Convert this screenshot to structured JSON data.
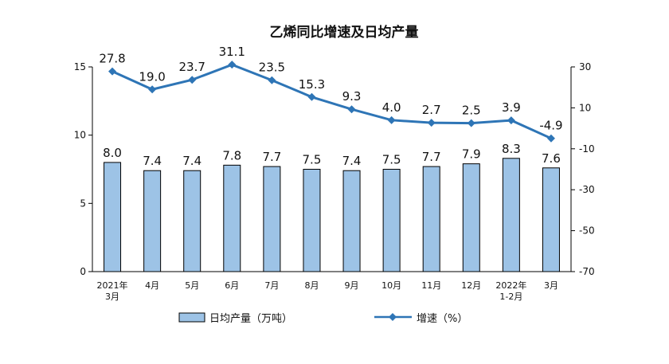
{
  "chart_data": {
    "type": "bar",
    "title": "乙烯同比增速及日均产量",
    "categories": [
      [
        "2021年",
        "3月"
      ],
      [
        "4月"
      ],
      [
        "5月"
      ],
      [
        "6月"
      ],
      [
        "7月"
      ],
      [
        "8月"
      ],
      [
        "9月"
      ],
      [
        "10月"
      ],
      [
        "11月"
      ],
      [
        "12月"
      ],
      [
        "2022年",
        "1-2月"
      ],
      [
        "3月"
      ]
    ],
    "series": [
      {
        "name": "日均产量（万吨）",
        "type": "bar",
        "axis": "left",
        "color": "#9DC3E6",
        "stroke": "#000000",
        "values": [
          8.0,
          7.4,
          7.4,
          7.8,
          7.7,
          7.5,
          7.4,
          7.5,
          7.7,
          7.9,
          8.3,
          7.6
        ],
        "labels": [
          "8.0",
          "7.4",
          "7.4",
          "7.8",
          "7.7",
          "7.5",
          "7.4",
          "7.5",
          "7.7",
          "7.9",
          "8.3",
          "7.6"
        ]
      },
      {
        "name": "增速（%）",
        "type": "line",
        "axis": "right",
        "color": "#2E75B6",
        "values": [
          27.8,
          19.0,
          23.7,
          31.1,
          23.5,
          15.3,
          9.3,
          4.0,
          2.7,
          2.5,
          3.9,
          -4.9
        ],
        "labels": [
          "27.8",
          "19.0",
          "23.7",
          "31.1",
          "23.5",
          "15.3",
          "9.3",
          "4.0",
          "2.7",
          "2.5",
          "3.9",
          "-4.9"
        ]
      }
    ],
    "left_axis": {
      "ylim": [
        0,
        15
      ],
      "ticks": [
        "0",
        "5",
        "10",
        "15"
      ],
      "tick_values": [
        0,
        5,
        10,
        15
      ]
    },
    "right_axis": {
      "ylim": [
        -70,
        30
      ],
      "ticks": [
        "30",
        "10",
        "-10",
        "-30",
        "-50",
        "-70"
      ],
      "tick_values": [
        30,
        10,
        -10,
        -30,
        -50,
        -70
      ]
    },
    "legend": {
      "placement": "bottom",
      "items": [
        {
          "name": "日均产量（万吨）",
          "symbol": "bar"
        },
        {
          "name": "增速（%）",
          "symbol": "line"
        }
      ]
    },
    "grid": false
  }
}
